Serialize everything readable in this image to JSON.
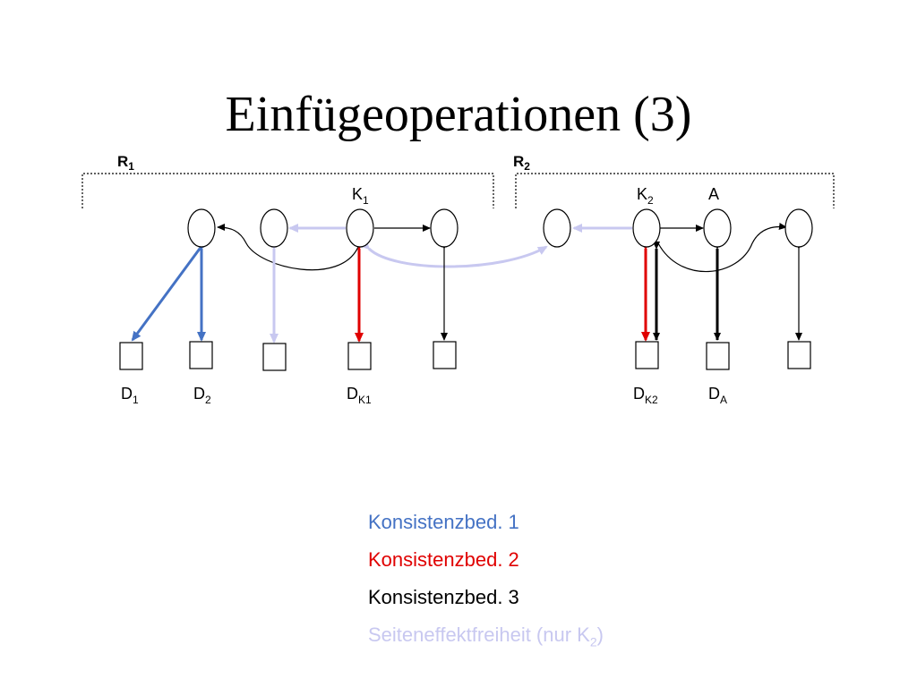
{
  "title": "Einfügeoperationen (3)",
  "regions": [
    {
      "label": "R",
      "sub": "1"
    },
    {
      "label": "R",
      "sub": "2"
    }
  ],
  "node_labels": {
    "k1": {
      "label": "K",
      "sub": "1"
    },
    "k2": {
      "label": "K",
      "sub": "2"
    },
    "a": {
      "label": "A",
      "sub": ""
    }
  },
  "data_labels": {
    "d1": {
      "label": "D",
      "sub": "1"
    },
    "d2": {
      "label": "D",
      "sub": "2"
    },
    "dk1": {
      "label": "D",
      "sub": "K1"
    },
    "dk2": {
      "label": "D",
      "sub": "K2"
    },
    "da": {
      "label": "D",
      "sub": "A"
    }
  },
  "legend": [
    {
      "text": "Konsistenzbed. 1",
      "color": "#4472c4"
    },
    {
      "text": "Konsistenzbed. 2",
      "color": "#e00000"
    },
    {
      "text": "Konsistenzbed. 3",
      "color": "#000000"
    },
    {
      "text": "Seiteneffektfreiheit (nur K",
      "sub": "2",
      "suffix": ")",
      "color": "#c8c8f0"
    }
  ],
  "colors": {
    "blue": "#4472c4",
    "red": "#e00000",
    "black": "#000000",
    "lavender": "#c8c8f0"
  }
}
